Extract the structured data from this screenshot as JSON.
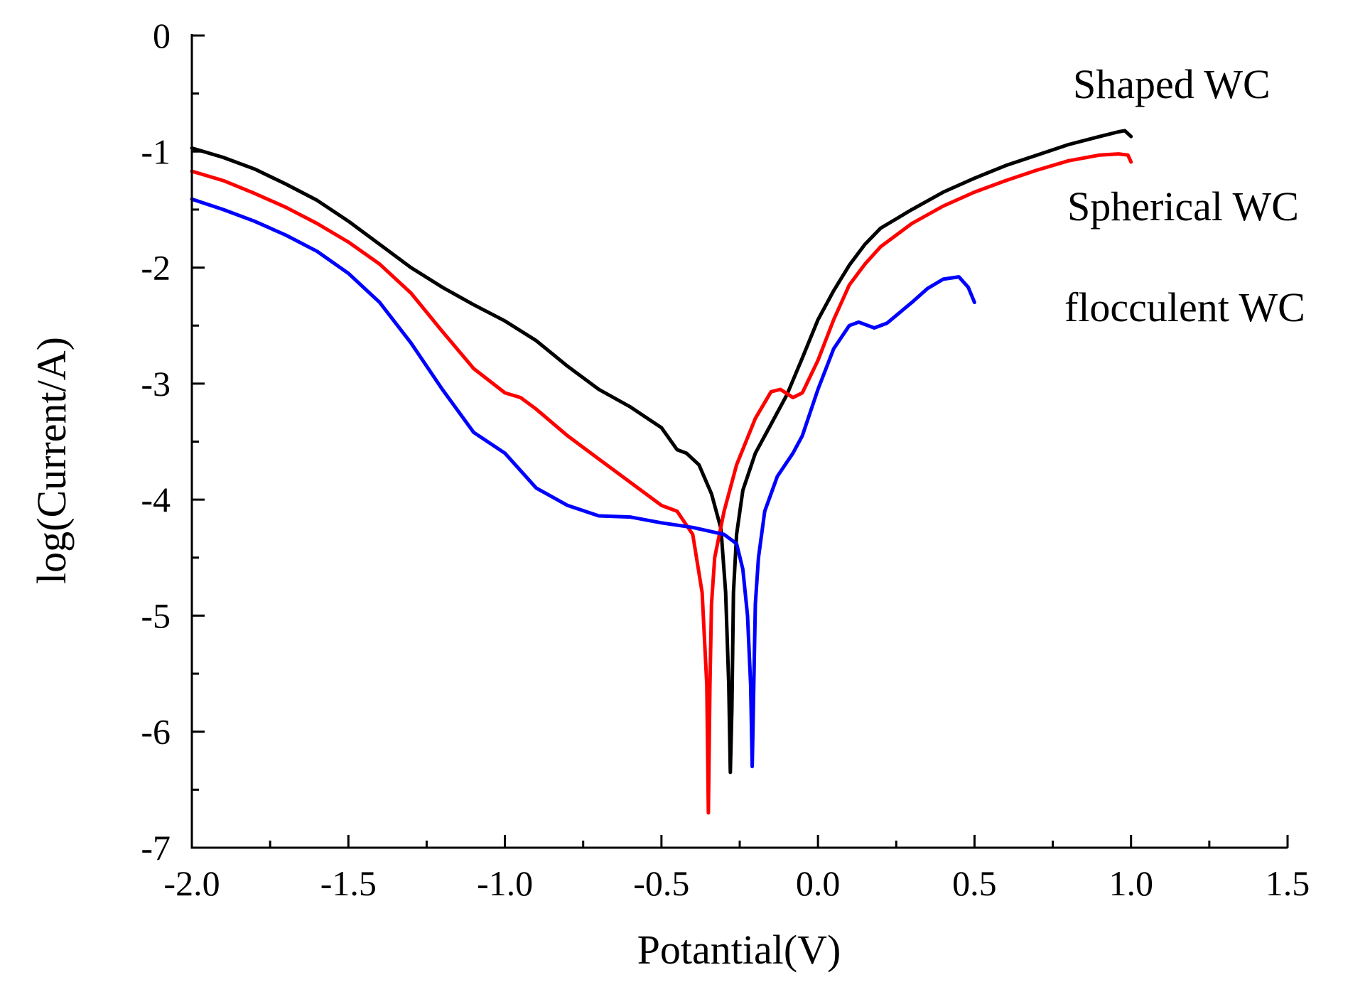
{
  "chart_data": {
    "type": "line",
    "title": "",
    "xlabel": "Potantial(V)",
    "ylabel": "log(Current/A)",
    "xlim": [
      -2.0,
      1.5
    ],
    "ylim": [
      -7,
      0
    ],
    "xticks": [
      -2.0,
      -1.5,
      -1.0,
      -0.5,
      0.0,
      0.5,
      1.0,
      1.5
    ],
    "xtick_labels": [
      "-2.0",
      "-1.5",
      "-1.0",
      "-0.5",
      "0.0",
      "0.5",
      "1.0",
      "1.5"
    ],
    "yticks": [
      0,
      -1,
      -2,
      -3,
      -4,
      -5,
      -6,
      -7
    ],
    "ytick_labels": [
      "0",
      "-1",
      "-2",
      "-3",
      "-4",
      "-5",
      "-6",
      "-7"
    ],
    "grid": false,
    "legend_position": "right",
    "series": [
      {
        "name": "Shaped WC",
        "color": "#000000",
        "points": [
          [
            -2.0,
            -0.97
          ],
          [
            -1.9,
            -1.05
          ],
          [
            -1.8,
            -1.15
          ],
          [
            -1.7,
            -1.28
          ],
          [
            -1.6,
            -1.42
          ],
          [
            -1.5,
            -1.6
          ],
          [
            -1.4,
            -1.8
          ],
          [
            -1.3,
            -2.0
          ],
          [
            -1.2,
            -2.17
          ],
          [
            -1.1,
            -2.32
          ],
          [
            -1.0,
            -2.46
          ],
          [
            -0.9,
            -2.63
          ],
          [
            -0.8,
            -2.85
          ],
          [
            -0.7,
            -3.05
          ],
          [
            -0.6,
            -3.2
          ],
          [
            -0.5,
            -3.38
          ],
          [
            -0.45,
            -3.57
          ],
          [
            -0.42,
            -3.6
          ],
          [
            -0.38,
            -3.7
          ],
          [
            -0.34,
            -3.95
          ],
          [
            -0.31,
            -4.25
          ],
          [
            -0.295,
            -4.8
          ],
          [
            -0.285,
            -5.6
          ],
          [
            -0.28,
            -6.35
          ],
          [
            -0.275,
            -5.8
          ],
          [
            -0.27,
            -4.8
          ],
          [
            -0.26,
            -4.3
          ],
          [
            -0.24,
            -3.92
          ],
          [
            -0.2,
            -3.6
          ],
          [
            -0.15,
            -3.35
          ],
          [
            -0.1,
            -3.1
          ],
          [
            -0.05,
            -2.78
          ],
          [
            0.0,
            -2.45
          ],
          [
            0.05,
            -2.2
          ],
          [
            0.1,
            -1.98
          ],
          [
            0.15,
            -1.8
          ],
          [
            0.2,
            -1.66
          ],
          [
            0.3,
            -1.5
          ],
          [
            0.4,
            -1.35
          ],
          [
            0.5,
            -1.23
          ],
          [
            0.6,
            -1.12
          ],
          [
            0.7,
            -1.03
          ],
          [
            0.8,
            -0.94
          ],
          [
            0.9,
            -0.87
          ],
          [
            0.96,
            -0.83
          ],
          [
            0.98,
            -0.82
          ],
          [
            1.0,
            -0.87
          ]
        ]
      },
      {
        "name": "Spherical WC",
        "color": "#ff0000",
        "points": [
          [
            -2.0,
            -1.17
          ],
          [
            -1.9,
            -1.25
          ],
          [
            -1.8,
            -1.36
          ],
          [
            -1.7,
            -1.48
          ],
          [
            -1.6,
            -1.62
          ],
          [
            -1.5,
            -1.78
          ],
          [
            -1.4,
            -1.97
          ],
          [
            -1.3,
            -2.22
          ],
          [
            -1.2,
            -2.55
          ],
          [
            -1.1,
            -2.87
          ],
          [
            -1.0,
            -3.08
          ],
          [
            -0.95,
            -3.12
          ],
          [
            -0.9,
            -3.22
          ],
          [
            -0.8,
            -3.45
          ],
          [
            -0.7,
            -3.65
          ],
          [
            -0.6,
            -3.85
          ],
          [
            -0.5,
            -4.05
          ],
          [
            -0.45,
            -4.1
          ],
          [
            -0.4,
            -4.3
          ],
          [
            -0.37,
            -4.8
          ],
          [
            -0.355,
            -5.6
          ],
          [
            -0.35,
            -6.7
          ],
          [
            -0.345,
            -5.6
          ],
          [
            -0.34,
            -4.9
          ],
          [
            -0.33,
            -4.5
          ],
          [
            -0.3,
            -4.1
          ],
          [
            -0.26,
            -3.7
          ],
          [
            -0.2,
            -3.3
          ],
          [
            -0.15,
            -3.07
          ],
          [
            -0.12,
            -3.05
          ],
          [
            -0.08,
            -3.12
          ],
          [
            -0.05,
            -3.08
          ],
          [
            0.0,
            -2.8
          ],
          [
            0.05,
            -2.45
          ],
          [
            0.1,
            -2.15
          ],
          [
            0.15,
            -1.97
          ],
          [
            0.2,
            -1.82
          ],
          [
            0.3,
            -1.62
          ],
          [
            0.4,
            -1.47
          ],
          [
            0.5,
            -1.35
          ],
          [
            0.6,
            -1.25
          ],
          [
            0.7,
            -1.16
          ],
          [
            0.8,
            -1.08
          ],
          [
            0.9,
            -1.03
          ],
          [
            0.96,
            -1.02
          ],
          [
            0.99,
            -1.03
          ],
          [
            1.0,
            -1.09
          ]
        ]
      },
      {
        "name": "flocculent WC",
        "color": "#0000ff",
        "points": [
          [
            -2.0,
            -1.41
          ],
          [
            -1.9,
            -1.5
          ],
          [
            -1.8,
            -1.6
          ],
          [
            -1.7,
            -1.72
          ],
          [
            -1.6,
            -1.86
          ],
          [
            -1.5,
            -2.05
          ],
          [
            -1.4,
            -2.3
          ],
          [
            -1.3,
            -2.65
          ],
          [
            -1.2,
            -3.05
          ],
          [
            -1.1,
            -3.42
          ],
          [
            -1.0,
            -3.6
          ],
          [
            -0.9,
            -3.9
          ],
          [
            -0.8,
            -4.05
          ],
          [
            -0.7,
            -4.14
          ],
          [
            -0.6,
            -4.15
          ],
          [
            -0.5,
            -4.2
          ],
          [
            -0.4,
            -4.24
          ],
          [
            -0.3,
            -4.3
          ],
          [
            -0.26,
            -4.38
          ],
          [
            -0.24,
            -4.6
          ],
          [
            -0.225,
            -5.0
          ],
          [
            -0.215,
            -5.6
          ],
          [
            -0.21,
            -6.3
          ],
          [
            -0.205,
            -5.6
          ],
          [
            -0.2,
            -4.9
          ],
          [
            -0.19,
            -4.5
          ],
          [
            -0.17,
            -4.1
          ],
          [
            -0.13,
            -3.8
          ],
          [
            -0.08,
            -3.6
          ],
          [
            -0.05,
            -3.45
          ],
          [
            0.0,
            -3.05
          ],
          [
            0.05,
            -2.7
          ],
          [
            0.1,
            -2.5
          ],
          [
            0.13,
            -2.47
          ],
          [
            0.18,
            -2.52
          ],
          [
            0.22,
            -2.48
          ],
          [
            0.3,
            -2.3
          ],
          [
            0.35,
            -2.18
          ],
          [
            0.4,
            -2.1
          ],
          [
            0.45,
            -2.08
          ],
          [
            0.48,
            -2.17
          ],
          [
            0.5,
            -2.3
          ]
        ]
      }
    ],
    "legend": [
      {
        "label": "Shaped WC"
      },
      {
        "label": "Spherical WC"
      },
      {
        "label": "flocculent WC"
      }
    ]
  }
}
